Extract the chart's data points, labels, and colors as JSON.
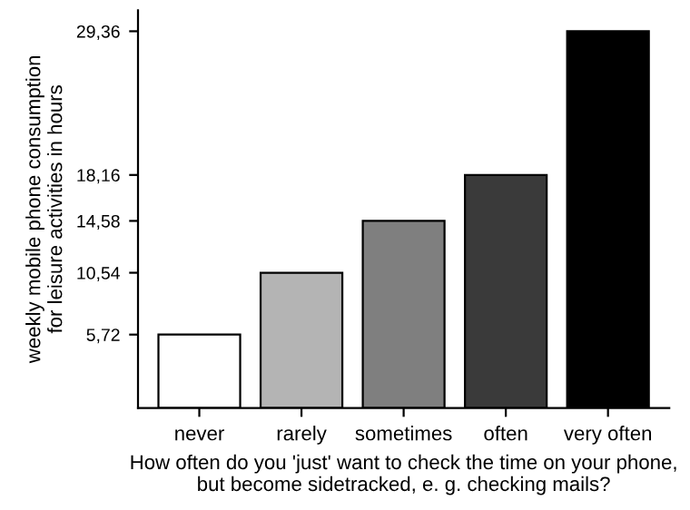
{
  "chart_data": {
    "type": "bar",
    "xlabel": "How often do you 'just' want to check the time on your phone,\nbut become sidetracked, e. g. checking mails?",
    "ylabel": "weekly mobile phone consumption\nfor leisure activities in hours",
    "categories": [
      "never",
      "rarely",
      "sometimes",
      "often",
      "very often"
    ],
    "values": [
      5.72,
      10.54,
      14.58,
      18.16,
      29.36
    ],
    "colors": [
      "#ffffff",
      "#b4b4b4",
      "#7f7f7f",
      "#3a3a3a",
      "#000000"
    ],
    "ylim": [
      0,
      31
    ],
    "yticks": [
      {
        "value": 5.72,
        "label": "5,72"
      },
      {
        "value": 10.54,
        "label": "10,54"
      },
      {
        "value": 14.58,
        "label": "14,58"
      },
      {
        "value": 18.16,
        "label": "18,16"
      },
      {
        "value": 29.36,
        "label": "29,36"
      }
    ],
    "grid": false
  }
}
